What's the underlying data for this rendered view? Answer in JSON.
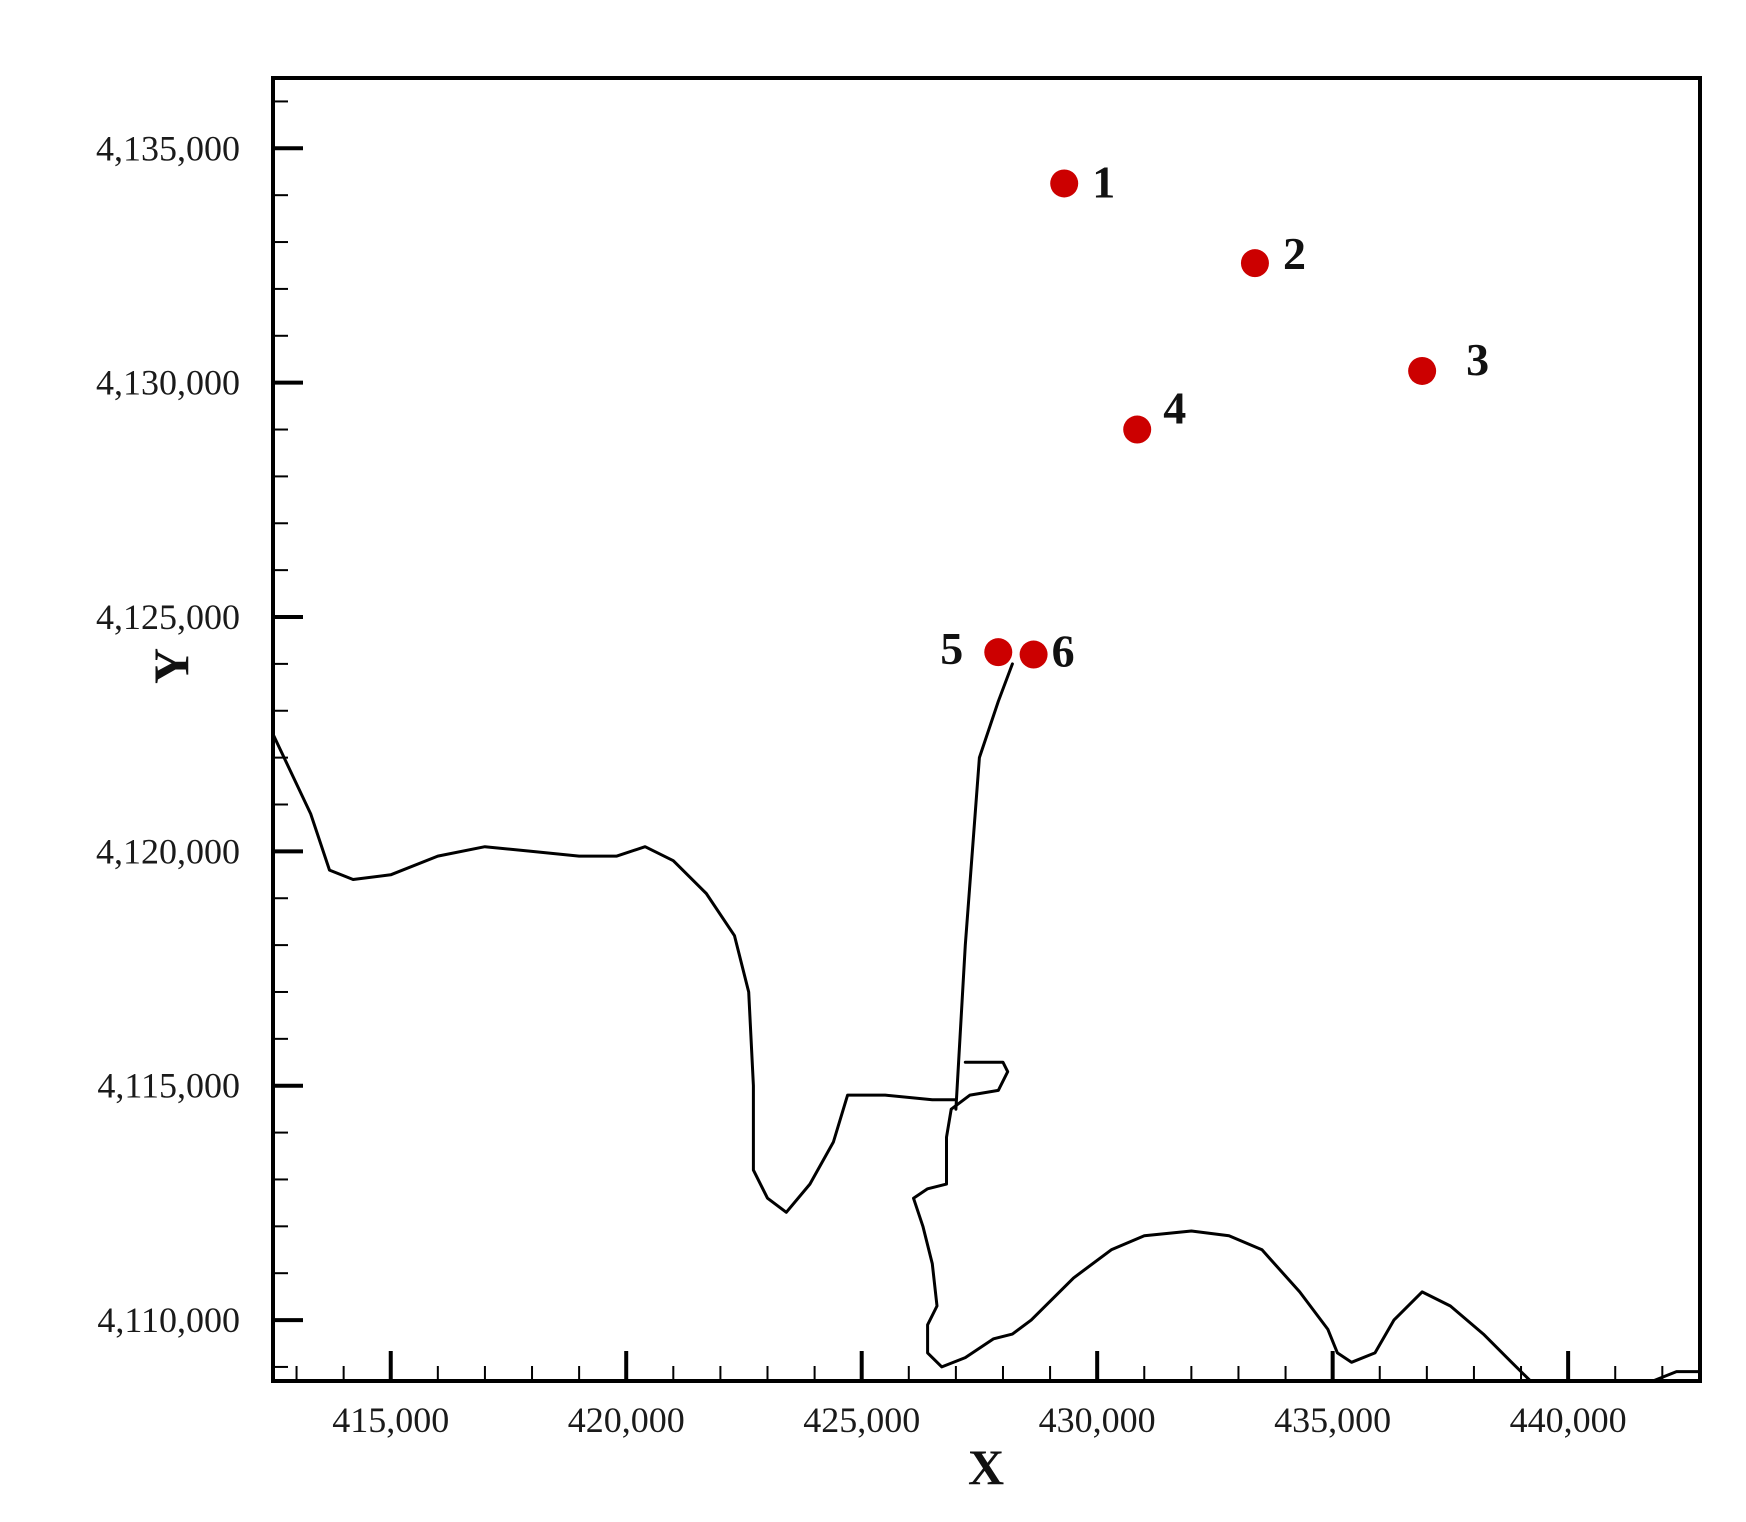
{
  "chart_data": {
    "type": "scatter",
    "xlabel": "X",
    "ylabel": "Y",
    "xlim": [
      412500,
      442800
    ],
    "ylim": [
      4108700,
      4136500
    ],
    "x_ticks": [
      415000,
      420000,
      425000,
      430000,
      435000,
      440000
    ],
    "x_tick_labels": [
      "415,000",
      "420,000",
      "425,000",
      "430,000",
      "435,000",
      "440,000"
    ],
    "y_ticks": [
      4110000,
      4115000,
      4120000,
      4125000,
      4130000,
      4135000
    ],
    "y_tick_labels": [
      "4,110,000",
      "4,115,000",
      "4,120,000",
      "4,125,000",
      "4,130,000",
      "4,135,000"
    ],
    "grid": false,
    "points": [
      {
        "label": "1",
        "x": 429300,
        "y": 4134250
      },
      {
        "label": "2",
        "x": 433350,
        "y": 4132550
      },
      {
        "label": "3",
        "x": 436900,
        "y": 4130250
      },
      {
        "label": "4",
        "x": 430850,
        "y": 4129000
      },
      {
        "label": "5",
        "x": 427900,
        "y": 4124250
      },
      {
        "label": "6",
        "x": 428650,
        "y": 4124200
      }
    ],
    "point_color": "#cc0000",
    "line_color": "#000000",
    "lines": [
      [
        [
          412500,
          4122500
        ],
        [
          413300,
          4120800
        ],
        [
          413700,
          4119600
        ],
        [
          414200,
          4119400
        ],
        [
          415000,
          4119500
        ],
        [
          416000,
          4119900
        ],
        [
          417000,
          4120100
        ],
        [
          418000,
          4120000
        ],
        [
          419000,
          4119900
        ],
        [
          419800,
          4119900
        ],
        [
          420400,
          4120100
        ],
        [
          421000,
          4119800
        ],
        [
          421700,
          4119100
        ],
        [
          422300,
          4118200
        ],
        [
          422600,
          4117000
        ],
        [
          422700,
          4115000
        ],
        [
          422700,
          4113200
        ],
        [
          423000,
          4112600
        ],
        [
          423400,
          4112300
        ],
        [
          423900,
          4112900
        ],
        [
          424400,
          4113800
        ],
        [
          424700,
          4114800
        ],
        [
          425500,
          4114800
        ],
        [
          426500,
          4114700
        ],
        [
          427000,
          4114700
        ]
      ],
      [
        [
          427000,
          4114500
        ],
        [
          427200,
          4118000
        ],
        [
          427500,
          4122000
        ],
        [
          427900,
          4123200
        ],
        [
          428200,
          4124000
        ]
      ],
      [
        [
          427200,
          4115500
        ],
        [
          428000,
          4115500
        ],
        [
          428100,
          4115300
        ],
        [
          427900,
          4114900
        ],
        [
          427300,
          4114800
        ],
        [
          426900,
          4114500
        ],
        [
          426800,
          4113900
        ],
        [
          426800,
          4112900
        ],
        [
          426400,
          4112800
        ],
        [
          426100,
          4112600
        ],
        [
          426300,
          4112000
        ],
        [
          426500,
          4111200
        ],
        [
          426600,
          4110300
        ],
        [
          426400,
          4109900
        ],
        [
          426400,
          4109300
        ],
        [
          426700,
          4109000
        ],
        [
          427200,
          4109200
        ],
        [
          427800,
          4109600
        ],
        [
          428200,
          4109700
        ],
        [
          428600,
          4110000
        ],
        [
          429500,
          4110900
        ],
        [
          430300,
          4111500
        ],
        [
          431000,
          4111800
        ],
        [
          432000,
          4111900
        ],
        [
          432800,
          4111800
        ],
        [
          433500,
          4111500
        ],
        [
          434300,
          4110600
        ],
        [
          434900,
          4109800
        ],
        [
          435100,
          4109300
        ],
        [
          435400,
          4109100
        ],
        [
          435900,
          4109300
        ],
        [
          436300,
          4110000
        ],
        [
          436900,
          4110600
        ],
        [
          437500,
          4110300
        ],
        [
          438200,
          4109700
        ],
        [
          438800,
          4109100
        ],
        [
          439200,
          4108700
        ]
      ],
      [
        [
          441800,
          4108700
        ],
        [
          442300,
          4108900
        ],
        [
          442800,
          4108900
        ]
      ]
    ]
  }
}
